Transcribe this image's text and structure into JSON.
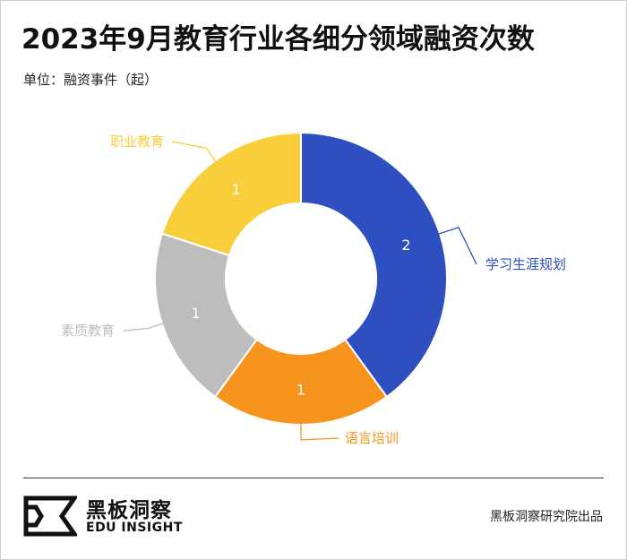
{
  "header": {
    "title": "2023年9月教育行业各细分领域融资次数",
    "unit": "单位：融资事件（起）"
  },
  "chart_data": {
    "type": "pie",
    "variant": "donut",
    "title": "2023年9月教育行业各细分领域融资次数",
    "unit": "融资事件（起）",
    "slices": [
      {
        "label": "学习生涯规划",
        "value": 2,
        "color": "#2d4fbf"
      },
      {
        "label": "语言培训",
        "value": 1,
        "color": "#f7941d"
      },
      {
        "label": "素质教育",
        "value": 1,
        "color": "#bdbdbd"
      },
      {
        "label": "职业教育",
        "value": 1,
        "color": "#f8cf3a"
      }
    ]
  },
  "footer": {
    "brand_cn": "黑板洞察",
    "brand_en": "EDU INSIGHT",
    "source": "黑板洞察研究院出品"
  }
}
